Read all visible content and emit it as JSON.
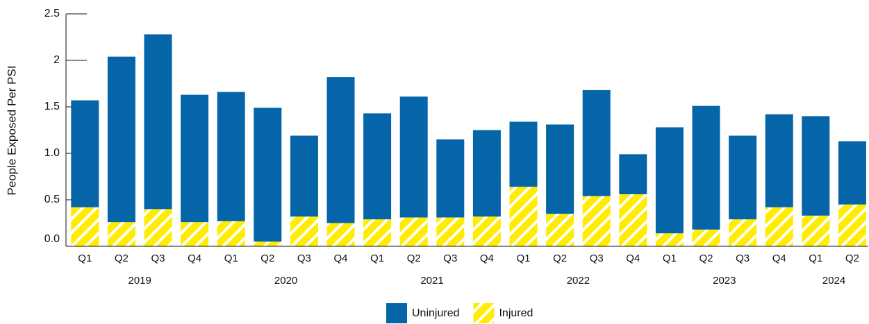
{
  "chart_data": {
    "type": "stacked_bar",
    "y_label": "People Exposed Per PSI",
    "categories": [
      "Q1",
      "Q2",
      "Q3",
      "Q4",
      "Q1",
      "Q2",
      "Q3",
      "Q4",
      "Q1",
      "Q2",
      "Q3",
      "Q4",
      "Q1",
      "Q2",
      "Q3",
      "Q4",
      "Q1",
      "Q2",
      "Q3",
      "Q4",
      "Q1",
      "Q2"
    ],
    "year_groups": [
      "2019",
      "2020",
      "2021",
      "2022",
      "2023",
      "2024"
    ],
    "series": [
      {
        "name": "Injured",
        "color": "#ffec00",
        "pattern": "hatch",
        "values": [
          0.42,
          0.26,
          0.4,
          0.26,
          0.27,
          0.05,
          0.32,
          0.25,
          0.29,
          0.31,
          0.31,
          0.32,
          0.64,
          0.35,
          0.54,
          0.56,
          0.14,
          0.18,
          0.29,
          0.42,
          0.33,
          0.45
        ]
      },
      {
        "name": "Uninjured",
        "color": "#0565a8",
        "values": [
          1.15,
          1.78,
          1.88,
          1.37,
          1.39,
          1.44,
          0.87,
          1.57,
          1.14,
          1.3,
          0.84,
          0.93,
          0.7,
          0.96,
          1.14,
          0.43,
          1.14,
          1.33,
          0.9,
          1.0,
          1.07,
          0.68
        ]
      }
    ],
    "legend_order": [
      1,
      0
    ],
    "ylim": [
      0,
      2.5
    ],
    "yticks": [
      {
        "value": 0,
        "label": "0.0"
      },
      0.5,
      {
        "value": 1,
        "label": "1.0"
      },
      1.5,
      2,
      2.5
    ]
  }
}
